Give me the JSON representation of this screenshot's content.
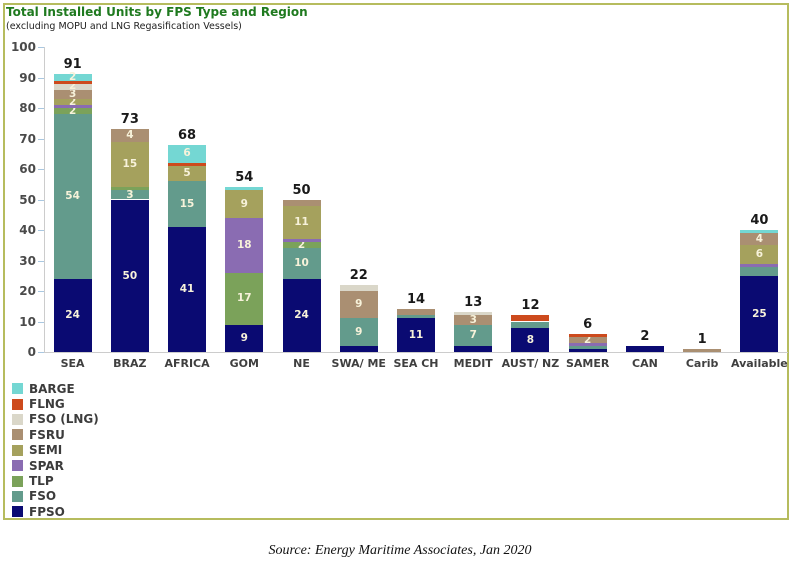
{
  "header": {
    "title": "Total Installed Units by FPS Type and Region",
    "subtitle": "(excluding MOPU and LNG Regasification Vessels)"
  },
  "footer": {
    "source": "Source: Energy Maritime Associates, Jan 2020"
  },
  "colors": {
    "series": {
      "BARGE": "#74d7d3",
      "FLNG": "#cd4a1d",
      "FSO (LNG)": "#dad7c9",
      "FSRU": "#aa8f72",
      "SEMI": "#a5a15d",
      "SPAR": "#8a6cb2",
      "TLP": "#7ba25a",
      "FSO": "#639b8c",
      "FPSO": "#0a0a72"
    },
    "figure_border": "#b6bc5e",
    "title_text": "#1f7a1f",
    "axis_text": "#4a4a4a",
    "axis_line": "#cccccc",
    "tick_mark": "#a9c7e0",
    "segment_label_text": "#f7f2da",
    "total_label_text": "#1a1a1a"
  },
  "chart_data": {
    "type": "bar",
    "stacked": true,
    "title": "Total Installed Units by FPS Type and Region",
    "subtitle": "(excluding MOPU and LNG Regasification Vessels)",
    "xlabel": "",
    "ylabel": "",
    "ylim": [
      0,
      100
    ],
    "yticks": [
      0,
      10,
      20,
      30,
      40,
      50,
      60,
      70,
      80,
      90,
      100
    ],
    "grid": false,
    "legend_position": "bottom-left",
    "legend": [
      "BARGE",
      "FLNG",
      "FSO (LNG)",
      "FSRU",
      "SEMI",
      "SPAR",
      "TLP",
      "FSO",
      "FPSO"
    ],
    "stack_order_bottom_to_top": [
      "FPSO",
      "FSO",
      "TLP",
      "SPAR",
      "SEMI",
      "FSRU",
      "FSO (LNG)",
      "FLNG",
      "BARGE"
    ],
    "categories": [
      "SEA",
      "BRAZ",
      "AFRICA",
      "GOM",
      "NE",
      "SWA/ ME",
      "SEA CH",
      "MEDIT",
      "AUST/ NZ",
      "SAMER",
      "CAN",
      "Carib",
      "Available"
    ],
    "totals": [
      91,
      73,
      68,
      54,
      50,
      22,
      14,
      13,
      12,
      6,
      2,
      1,
      40
    ],
    "bars": [
      {
        "category": "SEA",
        "total": 91,
        "segments": [
          {
            "type": "FPSO",
            "value": 24,
            "label": "24"
          },
          {
            "type": "FSO",
            "value": 54,
            "label": "54"
          },
          {
            "type": "TLP",
            "value": 2,
            "label": "2"
          },
          {
            "type": "SPAR",
            "value": 1,
            "label": ""
          },
          {
            "type": "SEMI",
            "value": 2,
            "label": "2"
          },
          {
            "type": "FSRU",
            "value": 3,
            "label": "3"
          },
          {
            "type": "FSO (LNG)",
            "value": 2,
            "label": "2"
          },
          {
            "type": "FLNG",
            "value": 1,
            "label": ""
          },
          {
            "type": "BARGE",
            "value": 2,
            "label": "2"
          }
        ]
      },
      {
        "category": "BRAZ",
        "total": 73,
        "segments": [
          {
            "type": "FPSO",
            "value": 50,
            "label": "50"
          },
          {
            "type": "FSO",
            "value": 3,
            "label": "3"
          },
          {
            "type": "TLP",
            "value": 1,
            "label": ""
          },
          {
            "type": "SEMI",
            "value": 15,
            "label": "15"
          },
          {
            "type": "FSRU",
            "value": 4,
            "label": "4"
          }
        ]
      },
      {
        "category": "AFRICA",
        "total": 68,
        "segments": [
          {
            "type": "FPSO",
            "value": 41,
            "label": "41"
          },
          {
            "type": "FSO",
            "value": 15,
            "label": "15"
          },
          {
            "type": "SEMI",
            "value": 5,
            "label": "5"
          },
          {
            "type": "FLNG",
            "value": 1,
            "label": ""
          },
          {
            "type": "BARGE",
            "value": 6,
            "label": "6"
          }
        ]
      },
      {
        "category": "GOM",
        "total": 54,
        "segments": [
          {
            "type": "FPSO",
            "value": 9,
            "label": "9"
          },
          {
            "type": "TLP",
            "value": 17,
            "label": "17"
          },
          {
            "type": "SPAR",
            "value": 18,
            "label": "18"
          },
          {
            "type": "SEMI",
            "value": 9,
            "label": "9"
          },
          {
            "type": "BARGE",
            "value": 1,
            "label": ""
          }
        ]
      },
      {
        "category": "NE",
        "total": 50,
        "segments": [
          {
            "type": "FPSO",
            "value": 24,
            "label": "24"
          },
          {
            "type": "FSO",
            "value": 10,
            "label": "10"
          },
          {
            "type": "TLP",
            "value": 2,
            "label": "2"
          },
          {
            "type": "SPAR",
            "value": 1,
            "label": ""
          },
          {
            "type": "SEMI",
            "value": 11,
            "label": "11"
          },
          {
            "type": "FSRU",
            "value": 2,
            "label": ""
          }
        ]
      },
      {
        "category": "SWA/ ME",
        "total": 22,
        "segments": [
          {
            "type": "FPSO",
            "value": 2,
            "label": ""
          },
          {
            "type": "FSO",
            "value": 9,
            "label": "9"
          },
          {
            "type": "FSRU",
            "value": 9,
            "label": "9"
          },
          {
            "type": "FSO (LNG)",
            "value": 2,
            "label": ""
          }
        ]
      },
      {
        "category": "SEA CH",
        "total": 14,
        "segments": [
          {
            "type": "FPSO",
            "value": 11,
            "label": "11"
          },
          {
            "type": "FSO",
            "value": 1,
            "label": ""
          },
          {
            "type": "FSRU",
            "value": 2,
            "label": ""
          }
        ]
      },
      {
        "category": "MEDIT",
        "total": 13,
        "segments": [
          {
            "type": "FPSO",
            "value": 2,
            "label": ""
          },
          {
            "type": "FSO",
            "value": 7,
            "label": "7"
          },
          {
            "type": "FSRU",
            "value": 3,
            "label": "3"
          },
          {
            "type": "FSO (LNG)",
            "value": 1,
            "label": ""
          }
        ]
      },
      {
        "category": "AUST/ NZ",
        "total": 12,
        "segments": [
          {
            "type": "FPSO",
            "value": 8,
            "label": "8"
          },
          {
            "type": "FSO",
            "value": 2,
            "label": ""
          },
          {
            "type": "FLNG",
            "value": 2,
            "label": ""
          }
        ]
      },
      {
        "category": "SAMER",
        "total": 6,
        "segments": [
          {
            "type": "FPSO",
            "value": 1,
            "label": ""
          },
          {
            "type": "FSO",
            "value": 1,
            "label": ""
          },
          {
            "type": "SPAR",
            "value": 1,
            "label": ""
          },
          {
            "type": "FSRU",
            "value": 2,
            "label": "2"
          },
          {
            "type": "FLNG",
            "value": 1,
            "label": ""
          }
        ]
      },
      {
        "category": "CAN",
        "total": 2,
        "segments": [
          {
            "type": "FPSO",
            "value": 2,
            "label": ""
          }
        ]
      },
      {
        "category": "Carib",
        "total": 1,
        "segments": [
          {
            "type": "FSRU",
            "value": 1,
            "label": ""
          }
        ]
      },
      {
        "category": "Available",
        "total": 40,
        "segments": [
          {
            "type": "FPSO",
            "value": 25,
            "label": "25"
          },
          {
            "type": "FSO",
            "value": 3,
            "label": ""
          },
          {
            "type": "SPAR",
            "value": 1,
            "label": ""
          },
          {
            "type": "SEMI",
            "value": 6,
            "label": "6"
          },
          {
            "type": "FSRU",
            "value": 4,
            "label": "4"
          },
          {
            "type": "BARGE",
            "value": 1,
            "label": ""
          }
        ]
      }
    ]
  }
}
